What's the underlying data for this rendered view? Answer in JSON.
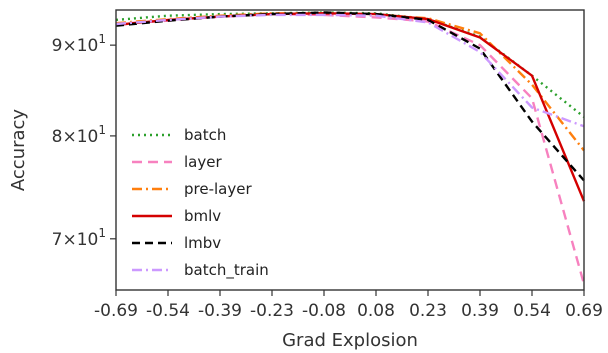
{
  "chart_data": {
    "type": "line",
    "xlabel": "Grad Explosion",
    "ylabel": "Accuracy",
    "x_tick_labels": [
      "-0.69",
      "-0.54",
      "-0.39",
      "-0.23",
      "-0.08",
      "0.08",
      "0.23",
      "0.39",
      "0.54",
      "0.69"
    ],
    "x": [
      -0.69,
      -0.54,
      -0.39,
      -0.23,
      -0.08,
      0.08,
      0.23,
      0.39,
      0.54,
      0.69
    ],
    "y_ticks": [
      {
        "value": 70,
        "mantissa": "7",
        "base": "10",
        "exp": "1"
      },
      {
        "value": 80,
        "mantissa": "8",
        "base": "10",
        "exp": "1"
      },
      {
        "value": 90,
        "mantissa": "9",
        "base": "10",
        "exp": "1"
      }
    ],
    "xlim": [
      -0.69,
      0.69
    ],
    "ylim": [
      65.5,
      94.2
    ],
    "y_scale": "log",
    "grid": false,
    "legend_position": "lower-left",
    "series": [
      {
        "name": "batch",
        "color": "#2ca02c",
        "dash": "2,4",
        "values": [
          93.0,
          93.5,
          93.7,
          93.8,
          93.9,
          93.8,
          93.1,
          91.0,
          86.5,
          82.0
        ]
      },
      {
        "name": "layer",
        "color": "#f781bf",
        "dash": "10,6",
        "values": [
          92.5,
          92.9,
          93.4,
          93.7,
          93.6,
          93.3,
          92.8,
          90.0,
          84.0,
          66.0
        ]
      },
      {
        "name": "pre-layer",
        "color": "#ff7f0e",
        "dash": "10,4,2,4",
        "values": [
          92.6,
          93.1,
          93.5,
          93.8,
          93.8,
          93.6,
          93.2,
          91.4,
          85.5,
          78.5
        ]
      },
      {
        "name": "bmlv",
        "color": "#d40000",
        "dash": "",
        "values": [
          92.4,
          93.0,
          93.4,
          93.7,
          93.8,
          93.7,
          93.1,
          90.9,
          86.5,
          73.5
        ]
      },
      {
        "name": "lmbv",
        "color": "#000000",
        "dash": "8,5",
        "values": [
          92.3,
          92.9,
          93.4,
          93.7,
          93.9,
          93.7,
          93.0,
          89.6,
          81.5,
          75.5
        ]
      },
      {
        "name": "batch_train",
        "color": "#cc99ff",
        "dash": "10,4,2,4",
        "values": [
          92.5,
          93.0,
          93.4,
          93.6,
          93.6,
          93.5,
          92.7,
          89.2,
          83.0,
          81.0
        ]
      }
    ]
  }
}
